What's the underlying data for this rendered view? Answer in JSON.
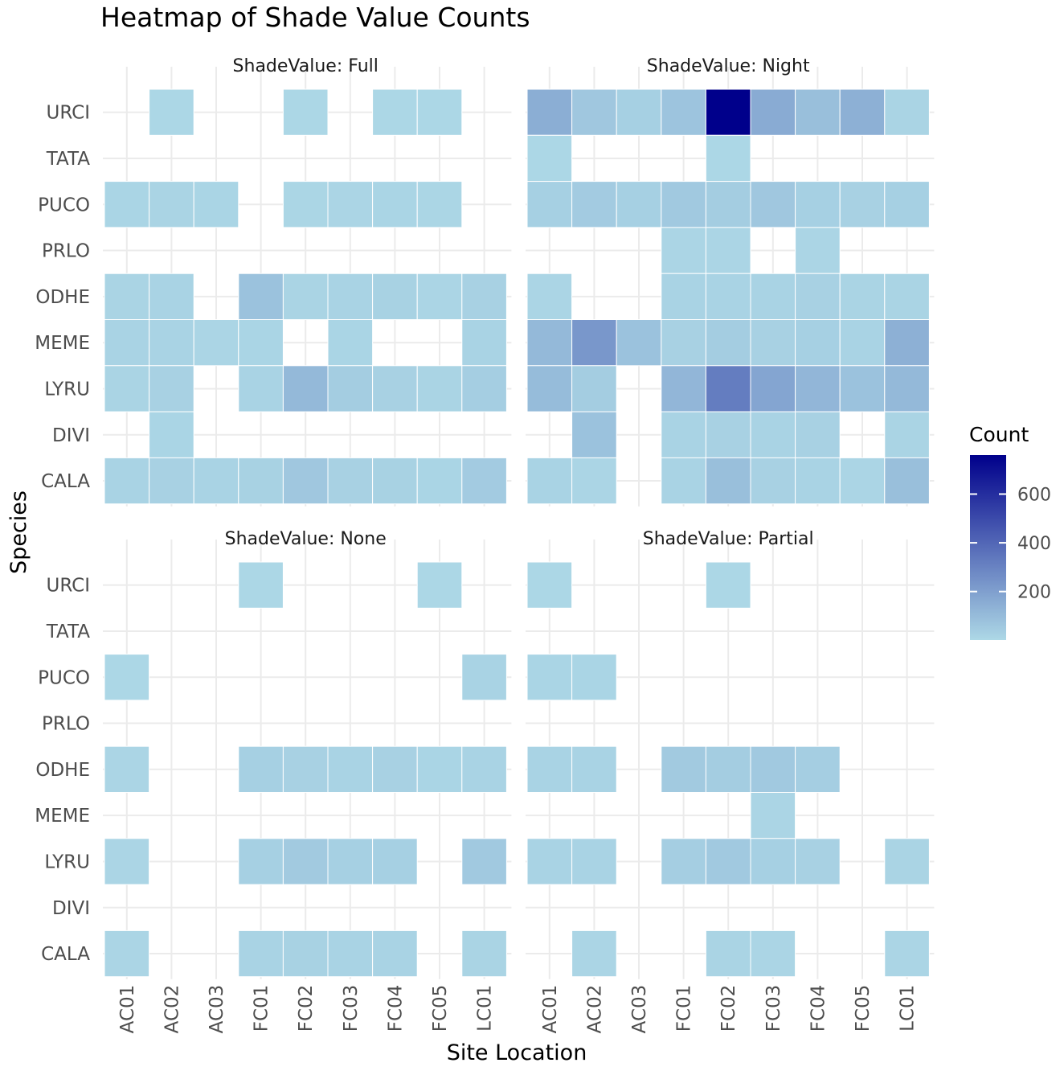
{
  "chart_data": {
    "type": "heatmap",
    "title": "Heatmap of Shade Value Counts",
    "xlabel": "Site Location",
    "ylabel": "Species",
    "legend": {
      "title": "Count",
      "position": "right",
      "ticks": [
        200,
        400,
        600
      ],
      "range": [
        1,
        760
      ]
    },
    "colors": {
      "low": "#add8e6",
      "high": "#00008b",
      "grid": "#ebebeb",
      "tile_border": "#ffffff",
      "text": "#4d4d4d",
      "title": "#000000"
    },
    "x": [
      "AC01",
      "AC02",
      "AC03",
      "FC01",
      "FC02",
      "FC03",
      "FC04",
      "FC05",
      "LC01"
    ],
    "y": [
      "CALA",
      "DIVI",
      "LYRU",
      "MEME",
      "ODHE",
      "PRLO",
      "PUCO",
      "TATA",
      "URCI"
    ],
    "facets": [
      {
        "label": "ShadeValue: Full",
        "cells": [
          [
            "URCI",
            "AC02",
            5
          ],
          [
            "URCI",
            "FC02",
            5
          ],
          [
            "URCI",
            "FC04",
            5
          ],
          [
            "URCI",
            "FC05",
            5
          ],
          [
            "PUCO",
            "AC01",
            12
          ],
          [
            "PUCO",
            "AC02",
            15
          ],
          [
            "PUCO",
            "AC03",
            12
          ],
          [
            "PUCO",
            "FC02",
            8
          ],
          [
            "PUCO",
            "FC03",
            10
          ],
          [
            "PUCO",
            "FC04",
            12
          ],
          [
            "PUCO",
            "FC05",
            8
          ],
          [
            "ODHE",
            "AC01",
            15
          ],
          [
            "ODHE",
            "AC02",
            20
          ],
          [
            "ODHE",
            "FC01",
            80
          ],
          [
            "ODHE",
            "FC02",
            15
          ],
          [
            "ODHE",
            "FC03",
            18
          ],
          [
            "ODHE",
            "FC04",
            22
          ],
          [
            "ODHE",
            "FC05",
            10
          ],
          [
            "ODHE",
            "LC01",
            25
          ],
          [
            "MEME",
            "AC01",
            18
          ],
          [
            "MEME",
            "AC02",
            20
          ],
          [
            "MEME",
            "AC03",
            10
          ],
          [
            "MEME",
            "FC01",
            12
          ],
          [
            "MEME",
            "FC03",
            12
          ],
          [
            "MEME",
            "LC01",
            20
          ],
          [
            "LYRU",
            "AC01",
            15
          ],
          [
            "LYRU",
            "AC02",
            25
          ],
          [
            "LYRU",
            "FC01",
            20
          ],
          [
            "LYRU",
            "FC02",
            110
          ],
          [
            "LYRU",
            "FC03",
            40
          ],
          [
            "LYRU",
            "FC04",
            25
          ],
          [
            "LYRU",
            "FC05",
            15
          ],
          [
            "LYRU",
            "LC01",
            35
          ],
          [
            "DIVI",
            "AC02",
            12
          ],
          [
            "CALA",
            "AC01",
            20
          ],
          [
            "CALA",
            "AC02",
            25
          ],
          [
            "CALA",
            "AC03",
            18
          ],
          [
            "CALA",
            "FC01",
            22
          ],
          [
            "CALA",
            "FC02",
            60
          ],
          [
            "CALA",
            "FC03",
            25
          ],
          [
            "CALA",
            "FC04",
            22
          ],
          [
            "CALA",
            "FC05",
            12
          ],
          [
            "CALA",
            "LC01",
            45
          ]
        ]
      },
      {
        "label": "ShadeValue: Night",
        "cells": [
          [
            "URCI",
            "AC01",
            150
          ],
          [
            "URCI",
            "AC02",
            60
          ],
          [
            "URCI",
            "AC03",
            30
          ],
          [
            "URCI",
            "FC01",
            70
          ],
          [
            "URCI",
            "FC02",
            760
          ],
          [
            "URCI",
            "FC03",
            160
          ],
          [
            "URCI",
            "FC04",
            90
          ],
          [
            "URCI",
            "FC05",
            140
          ],
          [
            "URCI",
            "LC01",
            15
          ],
          [
            "TATA",
            "AC01",
            5
          ],
          [
            "TATA",
            "FC02",
            5
          ],
          [
            "PUCO",
            "AC01",
            30
          ],
          [
            "PUCO",
            "AC02",
            45
          ],
          [
            "PUCO",
            "AC03",
            30
          ],
          [
            "PUCO",
            "FC01",
            55
          ],
          [
            "PUCO",
            "FC02",
            40
          ],
          [
            "PUCO",
            "FC03",
            60
          ],
          [
            "PUCO",
            "FC04",
            30
          ],
          [
            "PUCO",
            "FC05",
            25
          ],
          [
            "PUCO",
            "LC01",
            30
          ],
          [
            "PRLO",
            "FC01",
            10
          ],
          [
            "PRLO",
            "FC02",
            10
          ],
          [
            "PRLO",
            "FC04",
            10
          ],
          [
            "ODHE",
            "AC01",
            10
          ],
          [
            "ODHE",
            "FC01",
            20
          ],
          [
            "ODHE",
            "FC02",
            20
          ],
          [
            "ODHE",
            "FC03",
            20
          ],
          [
            "ODHE",
            "FC04",
            25
          ],
          [
            "ODHE",
            "FC05",
            15
          ],
          [
            "ODHE",
            "LC01",
            15
          ],
          [
            "MEME",
            "AC01",
            110
          ],
          [
            "MEME",
            "AC02",
            230
          ],
          [
            "MEME",
            "AC03",
            80
          ],
          [
            "MEME",
            "FC01",
            25
          ],
          [
            "MEME",
            "FC02",
            40
          ],
          [
            "MEME",
            "FC03",
            25
          ],
          [
            "MEME",
            "FC04",
            30
          ],
          [
            "MEME",
            "FC05",
            20
          ],
          [
            "MEME",
            "LC01",
            140
          ],
          [
            "LYRU",
            "AC01",
            100
          ],
          [
            "LYRU",
            "AC02",
            40
          ],
          [
            "LYRU",
            "FC01",
            120
          ],
          [
            "LYRU",
            "FC02",
            320
          ],
          [
            "LYRU",
            "FC03",
            180
          ],
          [
            "LYRU",
            "FC04",
            120
          ],
          [
            "LYRU",
            "FC05",
            80
          ],
          [
            "LYRU",
            "LC01",
            110
          ],
          [
            "DIVI",
            "AC02",
            80
          ],
          [
            "DIVI",
            "FC01",
            20
          ],
          [
            "DIVI",
            "FC02",
            25
          ],
          [
            "DIVI",
            "FC03",
            20
          ],
          [
            "DIVI",
            "FC04",
            25
          ],
          [
            "DIVI",
            "LC01",
            15
          ],
          [
            "CALA",
            "AC01",
            20
          ],
          [
            "CALA",
            "AC02",
            10
          ],
          [
            "CALA",
            "FC01",
            20
          ],
          [
            "CALA",
            "FC02",
            90
          ],
          [
            "CALA",
            "FC03",
            25
          ],
          [
            "CALA",
            "FC04",
            20
          ],
          [
            "CALA",
            "FC05",
            10
          ],
          [
            "CALA",
            "LC01",
            90
          ]
        ]
      },
      {
        "label": "ShadeValue: None",
        "cells": [
          [
            "URCI",
            "FC01",
            5
          ],
          [
            "URCI",
            "FC05",
            5
          ],
          [
            "PUCO",
            "AC01",
            5
          ],
          [
            "PUCO",
            "LC01",
            20
          ],
          [
            "ODHE",
            "AC01",
            10
          ],
          [
            "ODHE",
            "FC01",
            30
          ],
          [
            "ODHE",
            "FC02",
            25
          ],
          [
            "ODHE",
            "FC03",
            20
          ],
          [
            "ODHE",
            "FC04",
            25
          ],
          [
            "ODHE",
            "FC05",
            12
          ],
          [
            "ODHE",
            "LC01",
            20
          ],
          [
            "LYRU",
            "AC01",
            10
          ],
          [
            "LYRU",
            "FC01",
            30
          ],
          [
            "LYRU",
            "FC02",
            50
          ],
          [
            "LYRU",
            "FC03",
            30
          ],
          [
            "LYRU",
            "FC04",
            30
          ],
          [
            "LYRU",
            "LC01",
            55
          ],
          [
            "CALA",
            "AC01",
            10
          ],
          [
            "CALA",
            "FC01",
            20
          ],
          [
            "CALA",
            "FC02",
            22
          ],
          [
            "CALA",
            "FC03",
            20
          ],
          [
            "CALA",
            "FC04",
            20
          ],
          [
            "CALA",
            "LC01",
            15
          ]
        ]
      },
      {
        "label": "ShadeValue: Partial",
        "cells": [
          [
            "URCI",
            "AC01",
            5
          ],
          [
            "URCI",
            "FC02",
            5
          ],
          [
            "PUCO",
            "AC01",
            12
          ],
          [
            "PUCO",
            "AC02",
            12
          ],
          [
            "ODHE",
            "AC01",
            20
          ],
          [
            "ODHE",
            "AC02",
            20
          ],
          [
            "ODHE",
            "FC01",
            50
          ],
          [
            "ODHE",
            "FC02",
            40
          ],
          [
            "ODHE",
            "FC03",
            55
          ],
          [
            "ODHE",
            "FC04",
            35
          ],
          [
            "MEME",
            "FC03",
            10
          ],
          [
            "LYRU",
            "AC01",
            20
          ],
          [
            "LYRU",
            "AC02",
            20
          ],
          [
            "LYRU",
            "FC01",
            35
          ],
          [
            "LYRU",
            "FC02",
            55
          ],
          [
            "LYRU",
            "FC03",
            30
          ],
          [
            "LYRU",
            "FC04",
            25
          ],
          [
            "LYRU",
            "LC01",
            15
          ],
          [
            "CALA",
            "AC02",
            10
          ],
          [
            "CALA",
            "FC02",
            15
          ],
          [
            "CALA",
            "FC03",
            10
          ],
          [
            "CALA",
            "LC01",
            10
          ]
        ]
      }
    ]
  }
}
